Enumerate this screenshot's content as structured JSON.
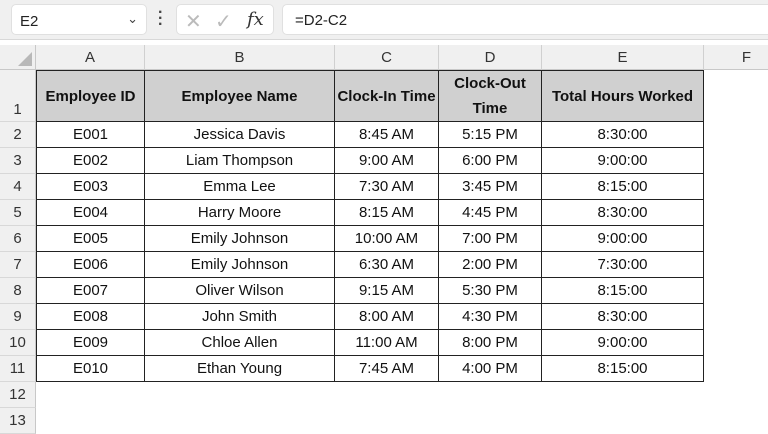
{
  "formula_bar": {
    "name_box": "E2",
    "formula": "=D2-C2",
    "fx_label": "fx",
    "cancel_icon": "close-icon",
    "enter_icon": "check-icon"
  },
  "columns": [
    "A",
    "B",
    "C",
    "D",
    "E",
    "F"
  ],
  "rows": [
    "1",
    "2",
    "3",
    "4",
    "5",
    "6",
    "7",
    "8",
    "9",
    "10",
    "11",
    "12",
    "13"
  ],
  "headers": [
    "Employee ID",
    "Employee Name",
    "Clock-In Time",
    "Clock-Out Time",
    "Total Hours Worked"
  ],
  "data": [
    [
      "E001",
      "Jessica Davis",
      "8:45 AM",
      "5:15 PM",
      "8:30:00"
    ],
    [
      "E002",
      "Liam Thompson",
      "9:00 AM",
      "6:00 PM",
      "9:00:00"
    ],
    [
      "E003",
      "Emma Lee",
      "7:30 AM",
      "3:45 PM",
      "8:15:00"
    ],
    [
      "E004",
      "Harry Moore",
      "8:15 AM",
      "4:45 PM",
      "8:30:00"
    ],
    [
      "E005",
      "Emily Johnson",
      "10:00 AM",
      "7:00 PM",
      "9:00:00"
    ],
    [
      "E006",
      "Emily Johnson",
      "6:30 AM",
      "2:00 PM",
      "7:30:00"
    ],
    [
      "E007",
      "Oliver Wilson",
      "9:15 AM",
      "5:30 PM",
      "8:15:00"
    ],
    [
      "E008",
      "John Smith",
      "8:00 AM",
      "4:30 PM",
      "8:30:00"
    ],
    [
      "E009",
      "Chloe Allen",
      "11:00 AM",
      "8:00 PM",
      "9:00:00"
    ],
    [
      "E010",
      "Ethan Young",
      "7:45 AM",
      "4:00 PM",
      "8:15:00"
    ]
  ],
  "colors": {
    "header_fill": "#d0d0d0",
    "chrome": "#f0f0f0"
  }
}
